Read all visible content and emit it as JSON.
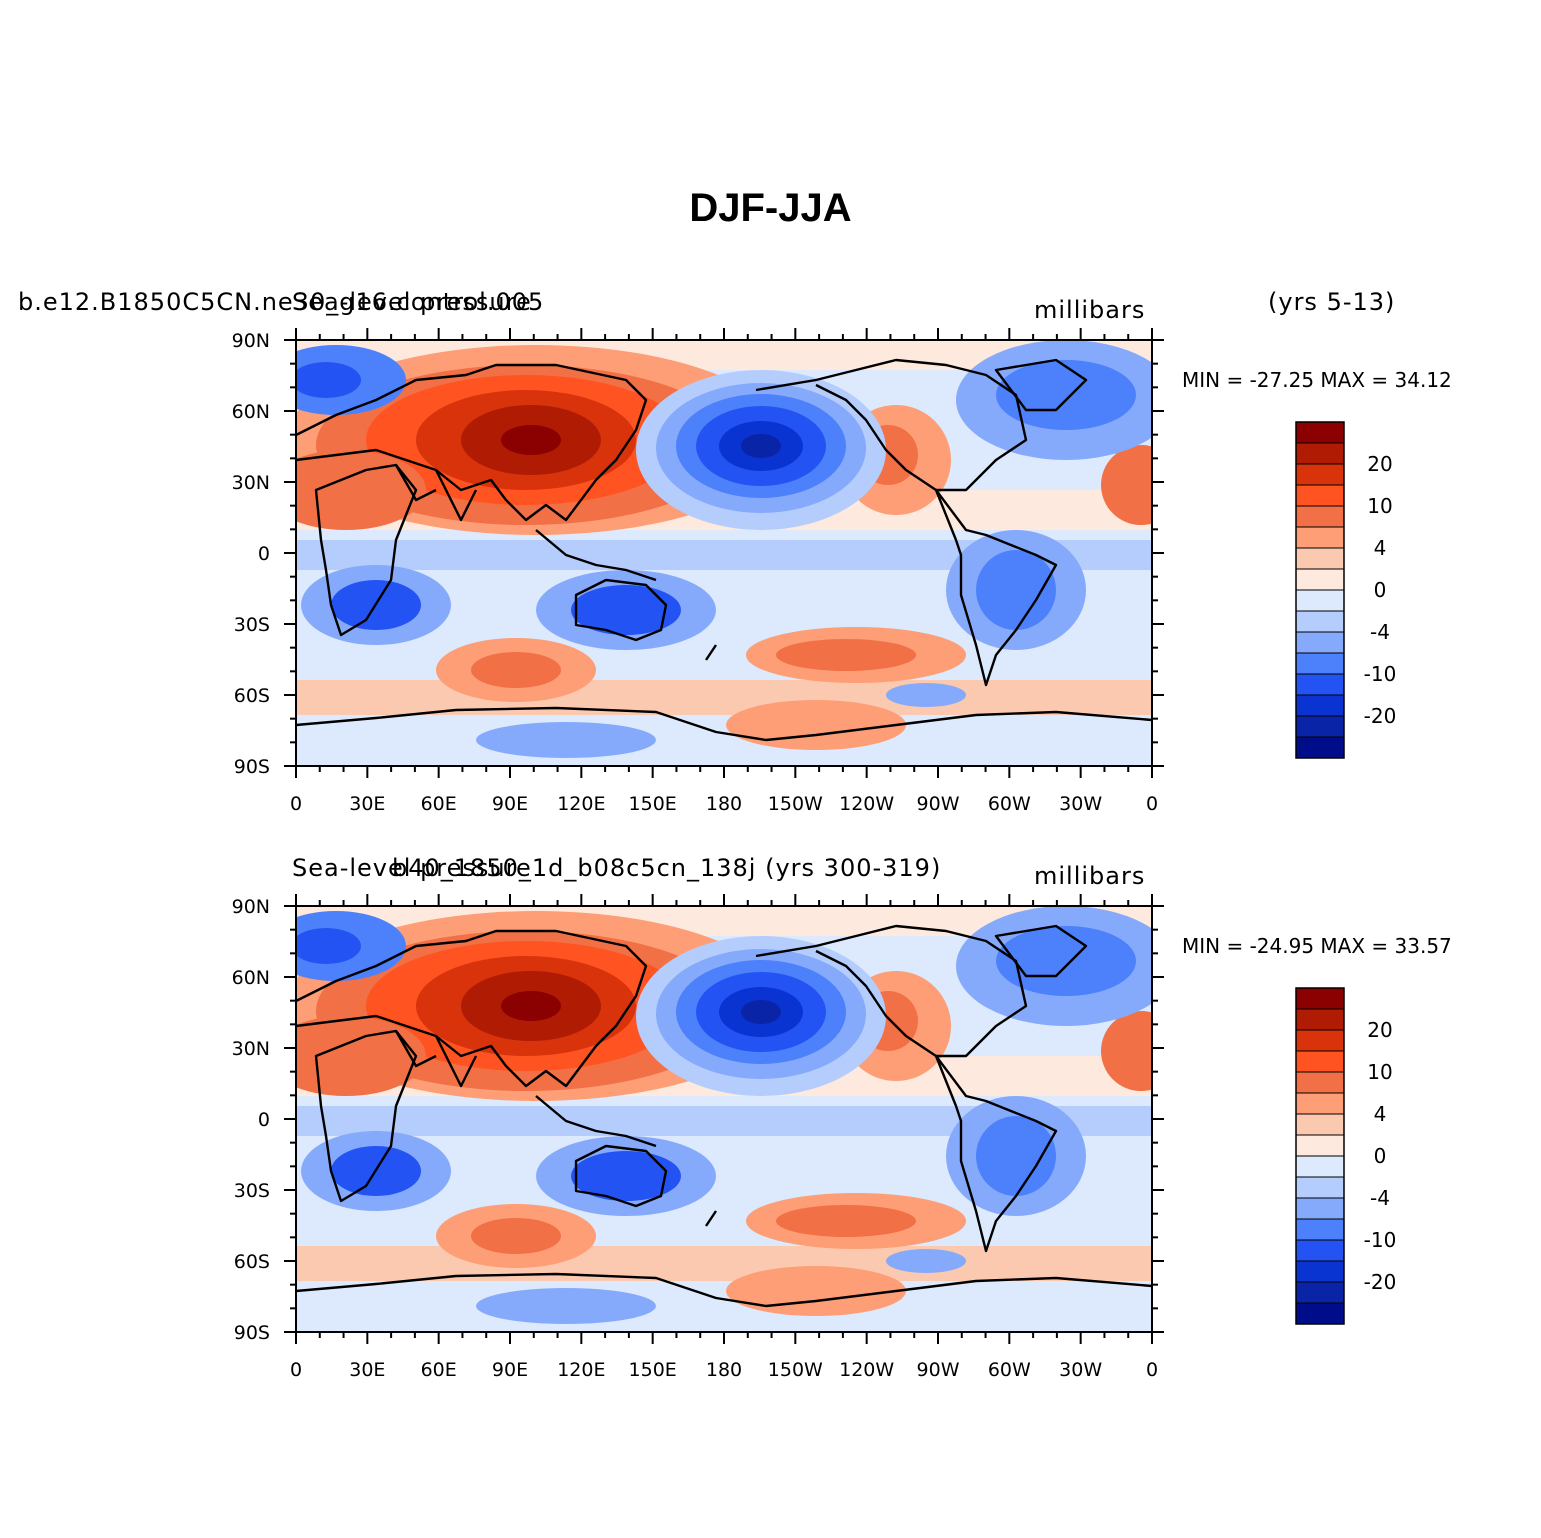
{
  "figure": {
    "title": "DJF-JJA"
  },
  "panels": [
    {
      "case_label": "b.e12.B1850C5CN.ne30_g16.control.005",
      "variable": "Sea-level pressure",
      "units": "millibars",
      "years": "(yrs 5-13)",
      "min_max": "MIN = -27.25  MAX =  34.12"
    },
    {
      "case_label": "b40_1850_1d_b08c5cn_138j (yrs 300-319)",
      "variable": "Sea-level pressure",
      "units": "millibars",
      "years": "",
      "min_max": "MIN = -24.95  MAX =  33.57"
    }
  ],
  "axes": {
    "lon_ticks": [
      "0",
      "30E",
      "60E",
      "90E",
      "120E",
      "150E",
      "180",
      "150W",
      "120W",
      "90W",
      "60W",
      "30W",
      "0"
    ],
    "lat_ticks": [
      "90N",
      "60N",
      "30N",
      "0",
      "30S",
      "60S",
      "90S"
    ]
  },
  "colorbar": {
    "labels": [
      "20",
      "10",
      "4",
      "0",
      "-4",
      "-10",
      "-20"
    ],
    "colors": [
      "#8b0000",
      "#b01c03",
      "#d9330c",
      "#ff5322",
      "#f27046",
      "#fd9e76",
      "#fbc9b0",
      "#fde9dd",
      "#dde9fc",
      "#b4cdfc",
      "#86aafb",
      "#4c81fb",
      "#2354f3",
      "#0a34d2",
      "#0a24a8",
      "#000d8b"
    ]
  },
  "chart_data": [
    {
      "type": "heatmap",
      "title": "DJF-JJA",
      "subtitle": "b.e12.B1850C5CN.ne30_g16.control.005 (yrs 5-13)",
      "variable": "Sea-level pressure",
      "units": "millibars",
      "min": -27.25,
      "max": 34.12,
      "x": [
        "0",
        "30E",
        "60E",
        "90E",
        "120E",
        "150E",
        "180",
        "150W",
        "120W",
        "90W",
        "60W",
        "30W",
        "0"
      ],
      "y": [
        "90N",
        "60N",
        "30N",
        "0",
        "30S",
        "60S",
        "90S"
      ],
      "colorbar_levels": [
        -20,
        -10,
        -4,
        0,
        4,
        10,
        20
      ]
    },
    {
      "type": "heatmap",
      "subtitle": "b40_1850_1d_b08c5cn_138j (yrs 300-319)",
      "variable": "Sea-level pressure",
      "units": "millibars",
      "min": -24.95,
      "max": 33.57,
      "x": [
        "0",
        "30E",
        "60E",
        "90E",
        "120E",
        "150E",
        "180",
        "150W",
        "120W",
        "90W",
        "60W",
        "30W",
        "0"
      ],
      "y": [
        "90N",
        "60N",
        "30N",
        "0",
        "30S",
        "60S",
        "90S"
      ],
      "colorbar_levels": [
        -20,
        -10,
        -4,
        0,
        4,
        10,
        20
      ]
    }
  ]
}
